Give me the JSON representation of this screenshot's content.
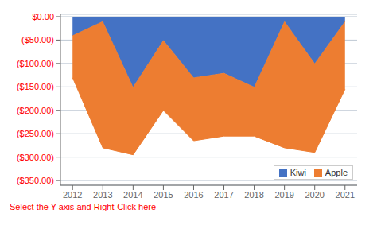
{
  "chart_data": {
    "type": "area",
    "stacked": true,
    "x": [
      2012,
      2013,
      2014,
      2015,
      2016,
      2017,
      2018,
      2019,
      2020,
      2021
    ],
    "series": [
      {
        "name": "Kiwi",
        "color": "#4472C4",
        "values": [
          -40,
          -10,
          -150,
          -50,
          -130,
          -120,
          -150,
          -10,
          -100,
          -10
        ]
      },
      {
        "name": "Apple",
        "color": "#ED7D31",
        "values": [
          -90,
          -270,
          -145,
          -150,
          -135,
          -135,
          -105,
          -270,
          -190,
          -145
        ]
      }
    ],
    "xlim": [
      2011.6,
      2021.4
    ],
    "xticks": [
      2012,
      2013,
      2014,
      2015,
      2016,
      2017,
      2018,
      2019,
      2020,
      2021
    ],
    "ylim": [
      -360,
      5
    ],
    "yticks": [
      {
        "value": 0,
        "label": "$0.00"
      },
      {
        "value": -50,
        "label": "($50.00)"
      },
      {
        "value": -100,
        "label": "($100.00)"
      },
      {
        "value": -150,
        "label": "($150.00)"
      },
      {
        "value": -200,
        "label": "($200.00)"
      },
      {
        "value": -250,
        "label": "($250.00)"
      },
      {
        "value": -300,
        "label": "($300.00)"
      },
      {
        "value": -350,
        "label": "($350.00)"
      }
    ],
    "grid": true,
    "legend": "lower right",
    "annotation": "Select the Y-axis and Right-Click here"
  }
}
